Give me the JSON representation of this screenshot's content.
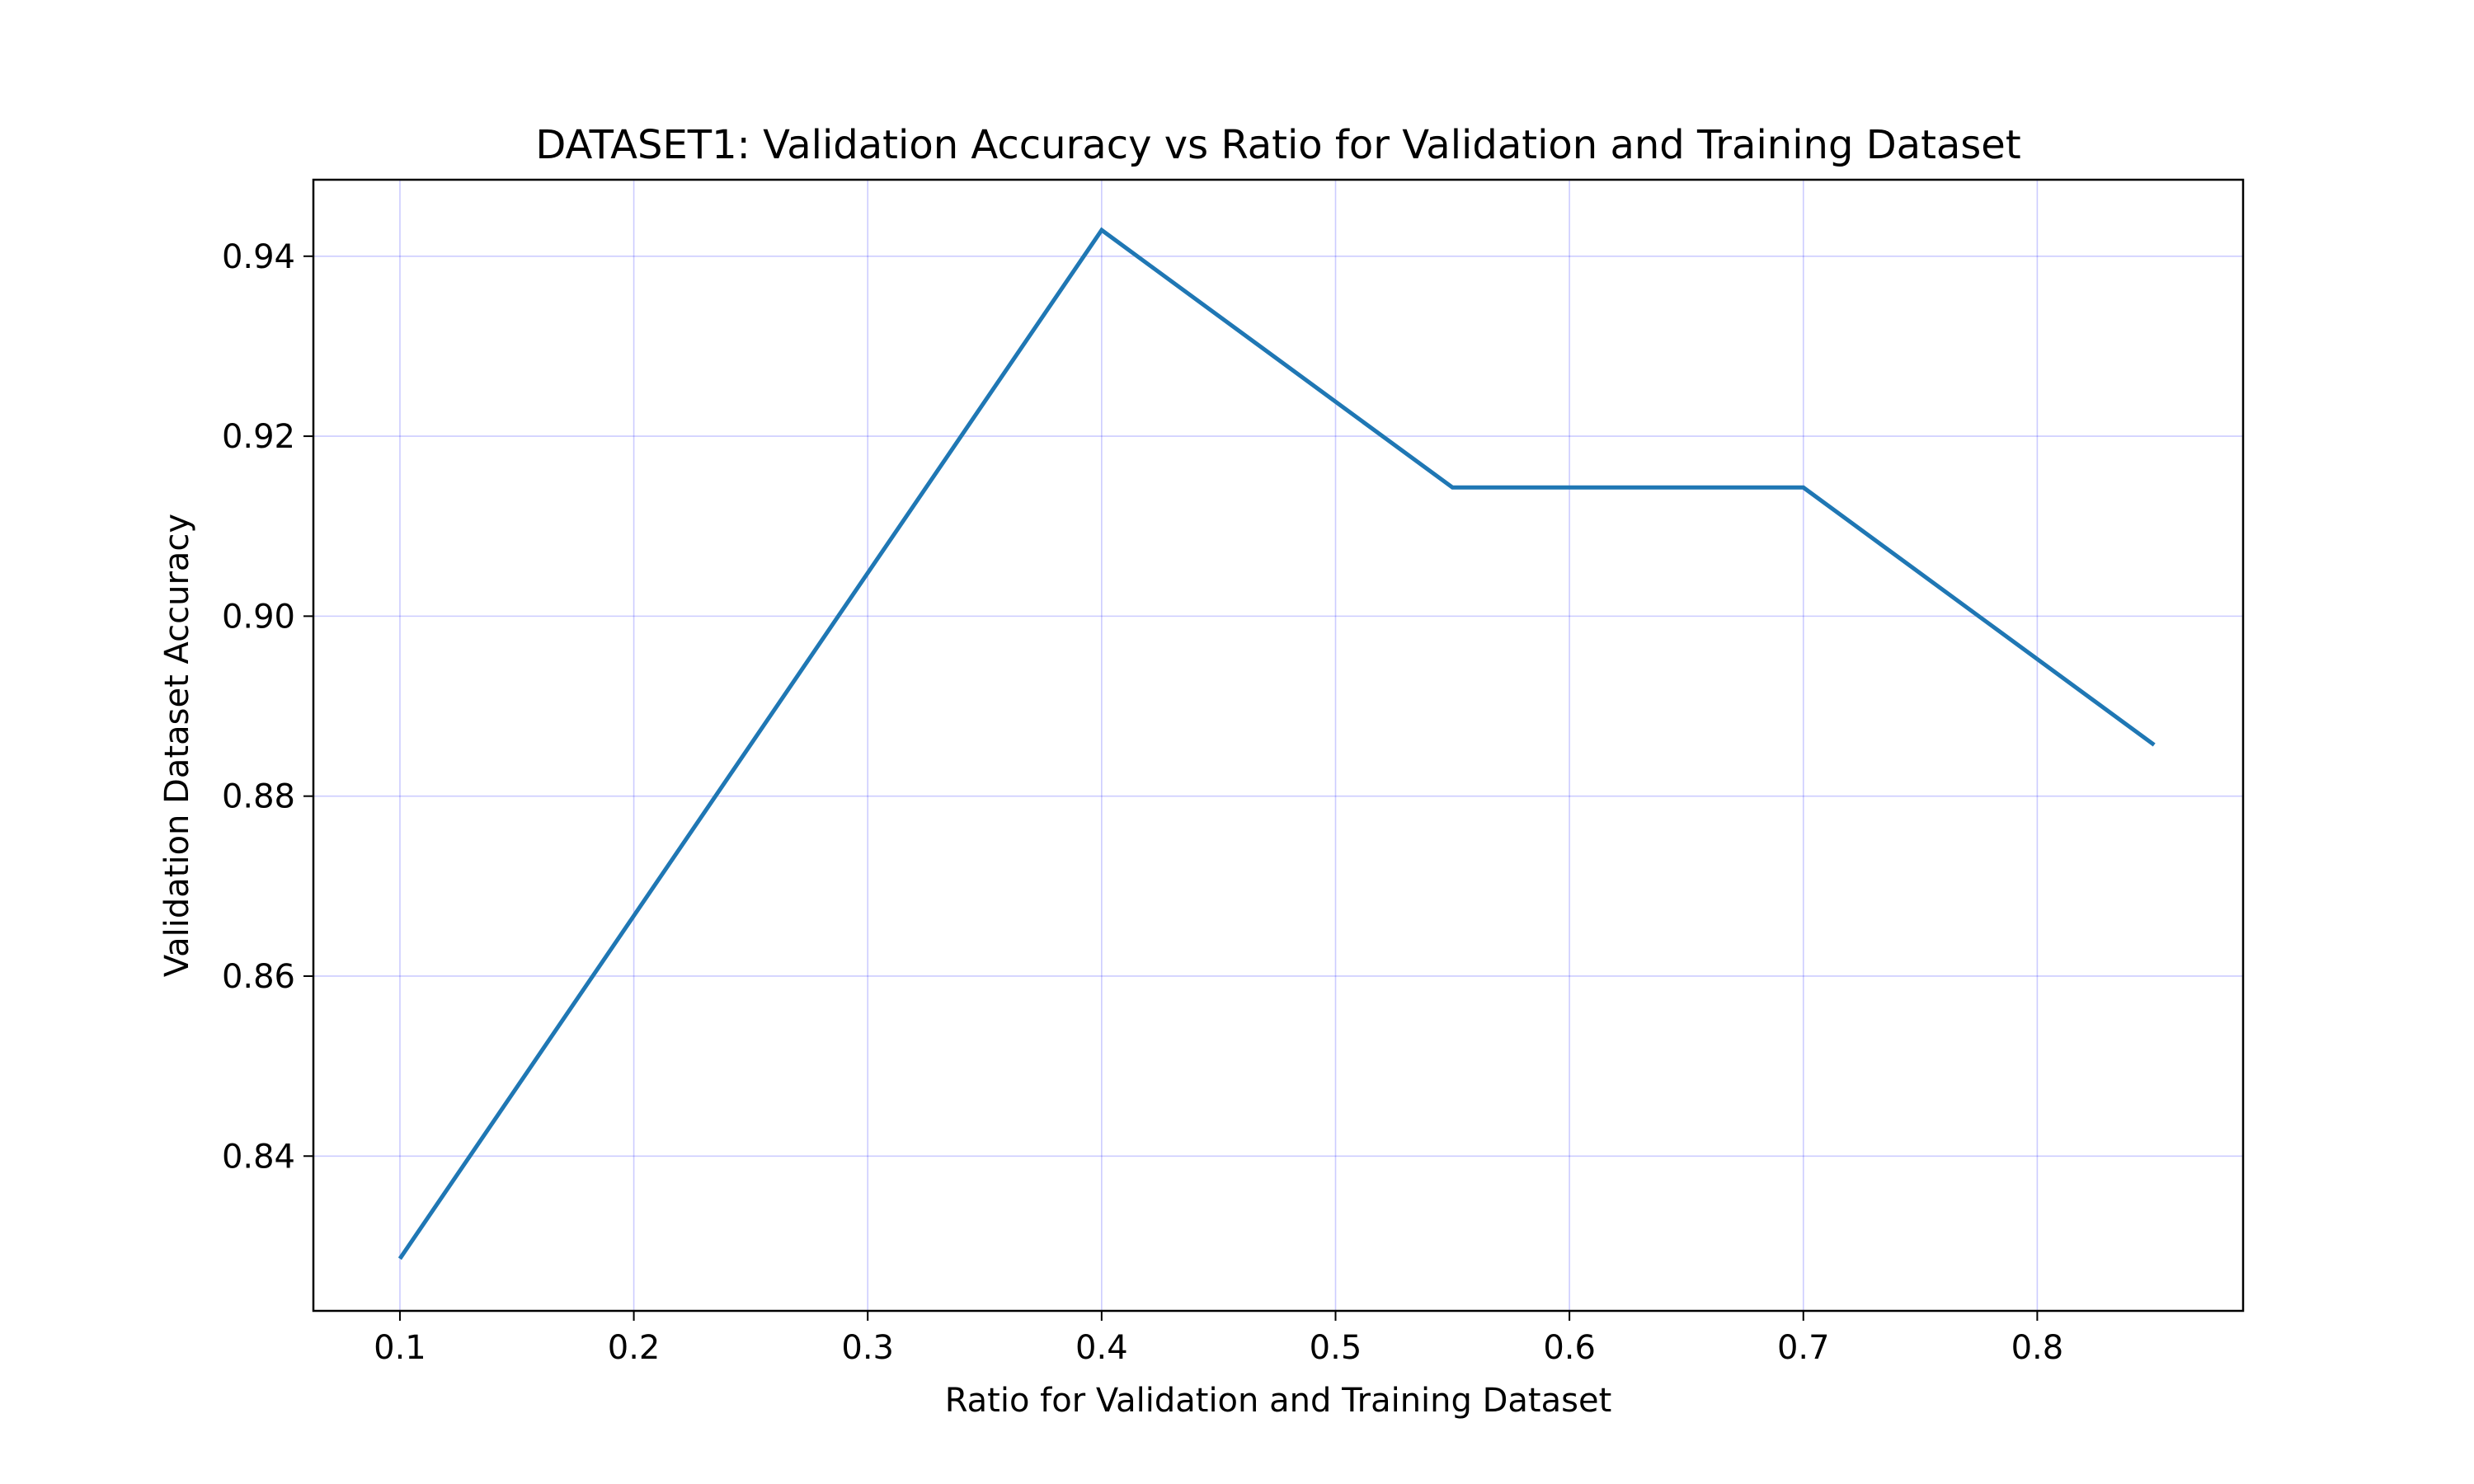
{
  "chart_data": {
    "type": "line",
    "title": "DATASET1: Validation Accuracy vs Ratio for Validation and Training Dataset",
    "xlabel": "Ratio for Validation and Training Dataset",
    "ylabel": "Validation Dataset Accuracy",
    "xlim": [
      0.063,
      0.888
    ],
    "ylim": [
      0.8228,
      0.9485
    ],
    "xticks": [
      0.1,
      0.2,
      0.3,
      0.4,
      0.5,
      0.6,
      0.7,
      0.8
    ],
    "xtick_labels": [
      "0.1",
      "0.2",
      "0.3",
      "0.4",
      "0.5",
      "0.6",
      "0.7",
      "0.8"
    ],
    "yticks": [
      0.84,
      0.86,
      0.88,
      0.9,
      0.92,
      0.94
    ],
    "ytick_labels": [
      "0.84",
      "0.86",
      "0.88",
      "0.90",
      "0.92",
      "0.94"
    ],
    "grid": true,
    "grid_color": "#0000ff",
    "legend": "none",
    "series": [
      {
        "color": "#1f77b4",
        "x": [
          0.1,
          0.4,
          0.55,
          0.7,
          0.85
        ],
        "y": [
          0.8286,
          0.9429,
          0.9143,
          0.9143,
          0.8857
        ]
      }
    ]
  }
}
